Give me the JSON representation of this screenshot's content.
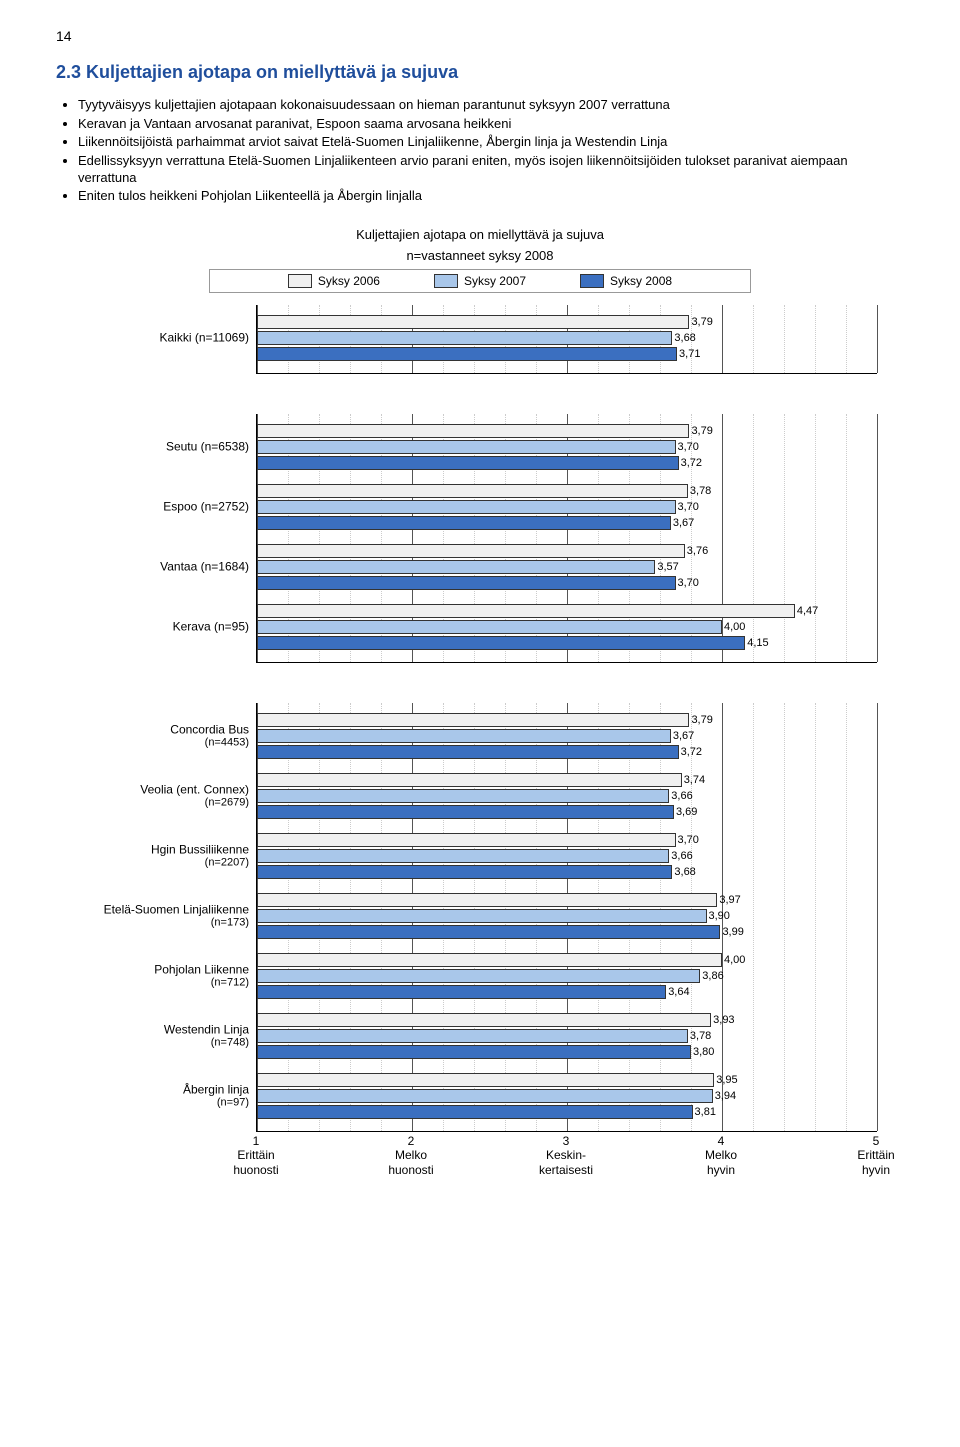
{
  "pageNumber": "14",
  "heading": "2.3   Kuljettajien ajotapa on miellyttävä ja sujuva",
  "bullets": [
    "Tyytyväisyys kuljettajien ajotapaan kokonaisuudessaan on hieman parantunut syksyyn 2007 verrattuna",
    "Keravan ja Vantaan arvosanat paranivat, Espoon saama arvosana heikkeni",
    "Liikennöitsijöistä parhaimmat arviot saivat Etelä-Suomen Linjaliikenne, Åbergin linja ja Westendin Linja",
    "Edellissyksyyn verrattuna Etelä-Suomen Linjaliikenteen arvio parani eniten, myös isojen liikennöitsijöiden tulokset paranivat aiempaan verrattuna",
    "Eniten tulos heikkeni Pohjolan Liikenteellä ja Åbergin linjalla"
  ],
  "chartTitle": "Kuljettajien ajotapa on miellyttävä ja sujuva",
  "chartSub": "n=vastanneet syksy 2008",
  "legend": {
    "s2006": "Syksy 2006",
    "s2007": "Syksy 2007",
    "s2008": "Syksy 2008"
  },
  "colors": {
    "s2006": "#f0f0f0",
    "s2007": "#a9c7ea",
    "s2008": "#3b6fc0",
    "grid": "#bbbbbb",
    "axis": "#000000"
  },
  "xAxis": {
    "min": 1,
    "max": 5,
    "ticks": [
      {
        "num": "1",
        "words": [
          "Erittäin",
          "huonosti"
        ]
      },
      {
        "num": "2",
        "words": [
          "Melko",
          "huonosti"
        ]
      },
      {
        "num": "3",
        "words": [
          "Keskin-",
          "kertaisesti"
        ]
      },
      {
        "num": "4",
        "words": [
          "Melko",
          "hyvin"
        ]
      },
      {
        "num": "5",
        "words": [
          "Erittäin",
          "hyvin"
        ]
      }
    ]
  },
  "groups": [
    {
      "items": [
        {
          "label": "Kaikki (n=11069)",
          "vals": [
            3.79,
            3.68,
            3.71
          ]
        }
      ]
    },
    {
      "items": [
        {
          "label": "Seutu (n=6538)",
          "vals": [
            3.79,
            3.7,
            3.72
          ]
        },
        {
          "label": "Espoo (n=2752)",
          "vals": [
            3.78,
            3.7,
            3.67
          ]
        },
        {
          "label": "Vantaa (n=1684)",
          "vals": [
            3.76,
            3.57,
            3.7
          ]
        },
        {
          "label": "Kerava (n=95)",
          "vals": [
            4.47,
            4.0,
            4.15
          ]
        }
      ]
    },
    {
      "items": [
        {
          "label": "Concordia Bus",
          "sub": "(n=4453)",
          "vals": [
            3.79,
            3.67,
            3.72
          ]
        },
        {
          "label": "Veolia (ent. Connex)",
          "sub": "(n=2679)",
          "vals": [
            3.74,
            3.66,
            3.69
          ]
        },
        {
          "label": "Hgin Bussiliikenne",
          "sub": "(n=2207)",
          "vals": [
            3.7,
            3.66,
            3.68
          ]
        },
        {
          "label": "Etelä-Suomen Linjaliikenne",
          "sub": "(n=173)",
          "vals": [
            3.97,
            3.9,
            3.99
          ]
        },
        {
          "label": "Pohjolan Liikenne",
          "sub": "(n=712)",
          "vals": [
            4.0,
            3.86,
            3.64
          ]
        },
        {
          "label": "Westendin Linja",
          "sub": "(n=748)",
          "vals": [
            3.93,
            3.78,
            3.8
          ]
        },
        {
          "label": "Åbergin linja",
          "sub": "(n=97)",
          "vals": [
            3.95,
            3.94,
            3.81
          ]
        }
      ],
      "showAxis": true
    }
  ]
}
